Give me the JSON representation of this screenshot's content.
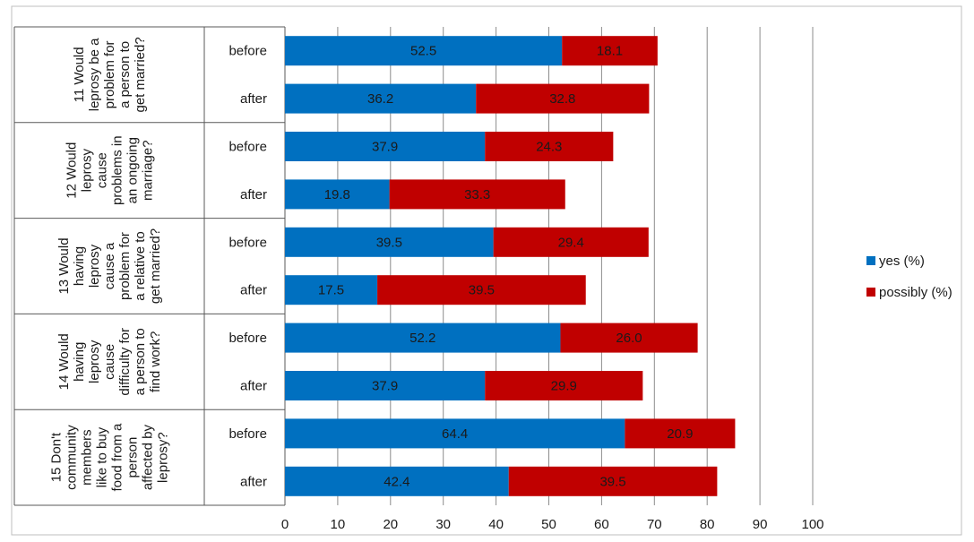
{
  "chart_data": {
    "type": "bar",
    "orientation": "horizontal",
    "stacked": true,
    "xlim": [
      0,
      100
    ],
    "ticks": [
      0,
      10,
      20,
      30,
      40,
      50,
      60,
      70,
      80,
      90,
      100
    ],
    "grid": true,
    "legend_position": "right",
    "groups": [
      {
        "question": [
          "11 Would",
          "leprosy be a",
          "problem for",
          "a person to",
          "get married?"
        ],
        "categories": [
          "before",
          "after"
        ]
      },
      {
        "question": [
          "12 Would",
          "leprosy",
          "cause",
          "problems in",
          "an ongoing",
          "marriage?"
        ],
        "categories": [
          "before",
          "after"
        ]
      },
      {
        "question": [
          "13 Would",
          "having",
          "leprosy",
          "cause a",
          "problem for",
          "a relative to",
          "get married?"
        ],
        "categories": [
          "before",
          "after"
        ]
      },
      {
        "question": [
          "14 Would",
          "having",
          "leprosy",
          "cause",
          "difficulty for",
          "a person to",
          "find work?"
        ],
        "categories": [
          "before",
          "after"
        ]
      },
      {
        "question": [
          "15 Don't",
          "community",
          "members",
          "like to buy",
          "food from a",
          "person",
          "affected by",
          "leprosy?"
        ],
        "categories": [
          "before",
          "after"
        ]
      }
    ],
    "series": [
      {
        "name": "yes (%)",
        "color": "#0070C0",
        "values": [
          52.5,
          36.2,
          37.9,
          19.8,
          39.5,
          17.5,
          52.2,
          37.9,
          64.4,
          42.4
        ]
      },
      {
        "name": "possibly (%)",
        "color": "#C00000",
        "values": [
          18.1,
          32.8,
          24.3,
          33.3,
          29.4,
          39.5,
          26.0,
          29.9,
          20.9,
          39.5
        ]
      }
    ]
  }
}
